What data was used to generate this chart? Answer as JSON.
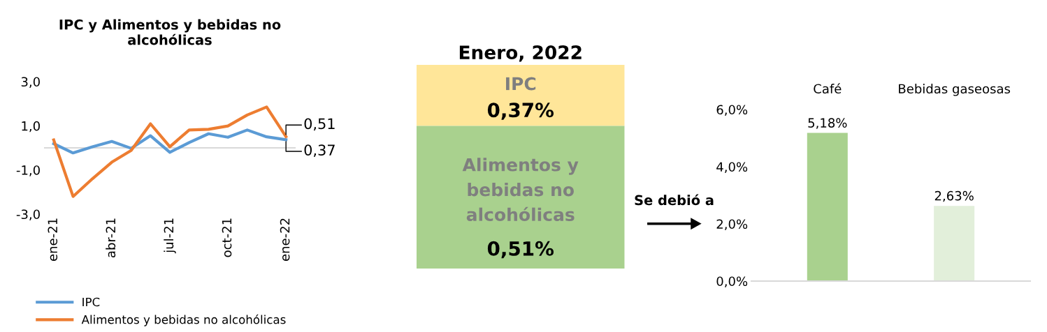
{
  "chart_data": [
    {
      "type": "line",
      "title": "IPC y Alimentos y bebidas no\nalcohólicas",
      "categories": [
        "ene-21",
        null,
        null,
        "abr-21",
        null,
        null,
        "jul-21",
        null,
        null,
        "oct-21",
        null,
        null,
        "ene-22"
      ],
      "series": [
        {
          "name": "IPC",
          "color": "#5b9bd5",
          "values": [
            0.19,
            -0.23,
            0.05,
            0.29,
            -0.02,
            0.55,
            -0.2,
            0.24,
            0.64,
            0.48,
            0.81,
            0.5,
            0.37
          ],
          "value_labels": [
            null,
            null,
            null,
            null,
            null,
            null,
            null,
            null,
            null,
            null,
            null,
            null,
            "0,37"
          ]
        },
        {
          "name": "Alimentos y bebidas no alcohólicas",
          "color": "#ed7d31",
          "values": [
            0.36,
            -2.2,
            -1.4,
            -0.65,
            -0.12,
            1.09,
            0.05,
            0.81,
            0.84,
            0.99,
            1.49,
            1.85,
            0.51
          ],
          "value_labels": [
            null,
            null,
            null,
            null,
            null,
            null,
            null,
            null,
            null,
            null,
            null,
            null,
            "0,51"
          ]
        }
      ],
      "ylim": [
        -3,
        3
      ],
      "yticks": [
        {
          "value": -3,
          "label": "-3,0"
        },
        {
          "value": -1,
          "label": "-1,0"
        },
        {
          "value": 1,
          "label": "1,0"
        },
        {
          "value": 3,
          "label": "3,0"
        }
      ],
      "grid": false,
      "legend": "bottom",
      "marker": "none",
      "line_style": "solid"
    },
    {
      "type": "other",
      "title": "Enero, 2022",
      "annotations": [
        "IPC",
        "0,37%",
        "Alimentos y\nbebidas no\nalcohólicas",
        "0,51%",
        "Se debió a"
      ],
      "colors": [
        "#ffe699",
        "#a9d18e"
      ]
    },
    {
      "type": "bar",
      "categories": [
        "Café",
        "Bebidas gaseosas"
      ],
      "values": [
        5.18,
        2.63
      ],
      "colors": [
        "#a9d18e",
        "#e2efda"
      ],
      "value_labels": [
        "5,18%",
        "2,63%"
      ],
      "ylim": [
        0,
        6
      ],
      "yticks": [
        {
          "value": 0,
          "label": "0,0%"
        },
        {
          "value": 2,
          "label": "2,0%"
        },
        {
          "value": 4,
          "label": "4,0%"
        },
        {
          "value": 6,
          "label": "6,0%"
        }
      ],
      "grid": false
    }
  ]
}
